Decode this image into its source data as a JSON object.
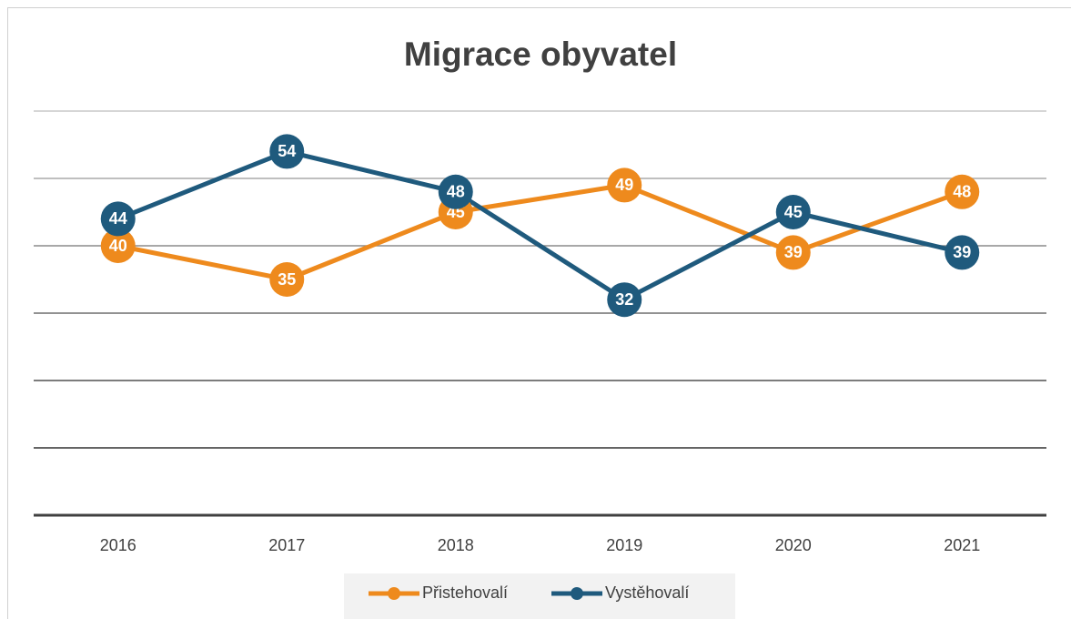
{
  "chart_data": {
    "type": "line",
    "title": "Migrace obyvatel",
    "categories": [
      "2016",
      "2017",
      "2018",
      "2019",
      "2020",
      "2021"
    ],
    "series": [
      {
        "name": "Přistehovalí",
        "color": "#ee8a1d",
        "values": [
          40,
          35,
          45,
          49,
          39,
          48
        ]
      },
      {
        "name": "Vystěhovalí",
        "color": "#1f5a7d",
        "values": [
          44,
          54,
          48,
          32,
          45,
          39
        ]
      }
    ],
    "ylim": [
      0,
      60
    ],
    "yticks": [
      0,
      10,
      20,
      30,
      40,
      50,
      60
    ],
    "grid": true,
    "legend": "bottom"
  }
}
